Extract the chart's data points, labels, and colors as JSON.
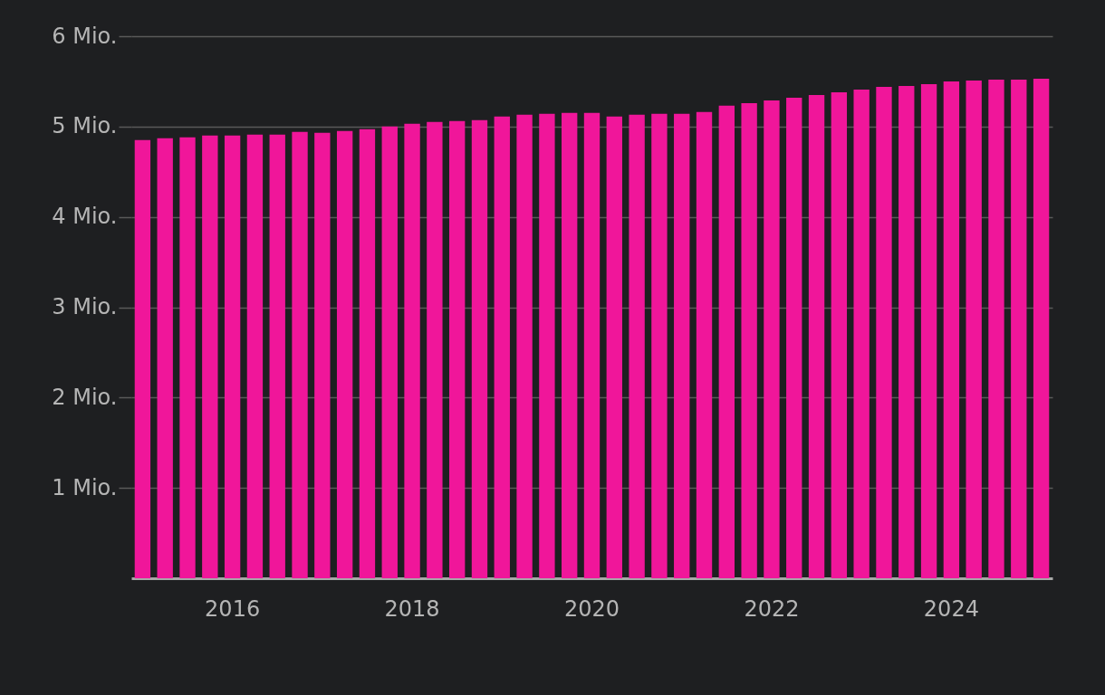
{
  "chart_data": {
    "type": "bar",
    "categories": [
      null,
      null,
      null,
      null,
      "2016",
      null,
      null,
      null,
      null,
      null,
      null,
      null,
      "2018",
      null,
      null,
      null,
      null,
      null,
      null,
      null,
      "2020",
      null,
      null,
      null,
      null,
      null,
      null,
      null,
      "2022",
      null,
      null,
      null,
      null,
      null,
      null,
      null,
      "2024",
      null,
      null,
      null,
      null
    ],
    "values": [
      4.85,
      4.87,
      4.88,
      4.9,
      4.9,
      4.91,
      4.91,
      4.94,
      4.93,
      4.95,
      4.97,
      5.0,
      5.03,
      5.05,
      5.06,
      5.07,
      5.11,
      5.13,
      5.14,
      5.15,
      5.15,
      5.11,
      5.13,
      5.14,
      5.14,
      5.16,
      5.23,
      5.26,
      5.29,
      5.32,
      5.35,
      5.38,
      5.41,
      5.44,
      5.45,
      5.47,
      5.5,
      5.51,
      5.52,
      5.52,
      5.53
    ],
    "color": "#f0169a",
    "ylim": [
      0,
      6
    ],
    "yticks": [
      {
        "value": 1,
        "label": "1 Mio."
      },
      {
        "value": 2,
        "label": "2 Mio."
      },
      {
        "value": 3,
        "label": "3 Mio."
      },
      {
        "value": 4,
        "label": "4 Mio."
      },
      {
        "value": 5,
        "label": "5 Mio."
      },
      {
        "value": 6,
        "label": "6 Mio."
      }
    ],
    "grid": "y"
  }
}
